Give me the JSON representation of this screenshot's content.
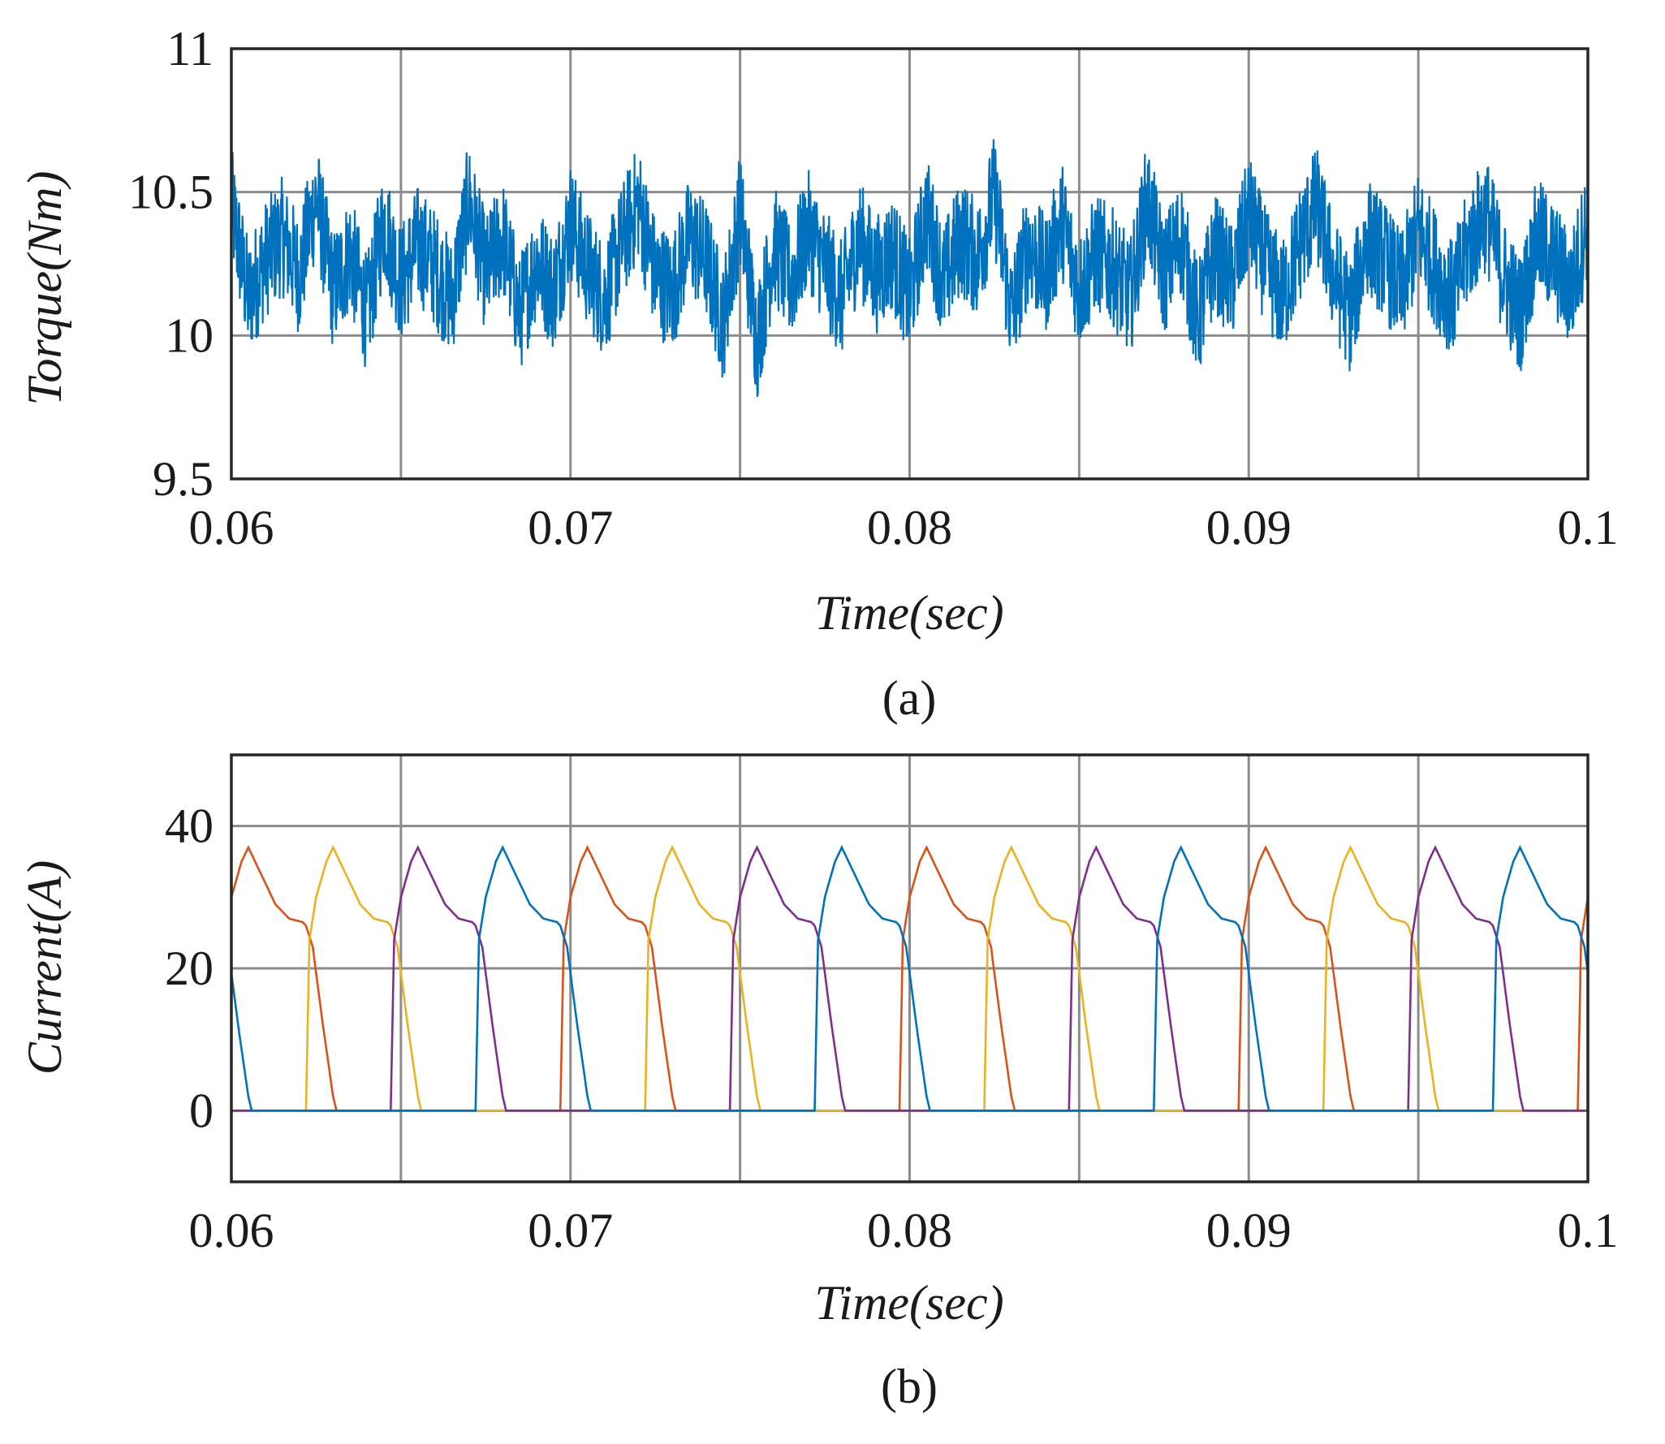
{
  "chart_data": [
    {
      "type": "line",
      "caption": "(a)",
      "xlabel": "Time(sec)",
      "ylabel": "Torque(Nm)",
      "xlim": [
        0.06,
        0.1
      ],
      "ylim": [
        9.5,
        11
      ],
      "xticks": [
        "0.06",
        "0.07",
        "0.08",
        "0.09",
        "0.1"
      ],
      "yticks": [
        "9.5",
        "10",
        "10.5",
        "11"
      ],
      "grid": true,
      "x": [
        0.06,
        0.0605,
        0.061,
        0.0615,
        0.062,
        0.0625,
        0.063,
        0.0635,
        0.064,
        0.0645,
        0.065,
        0.0655,
        0.066,
        0.0665,
        0.067,
        0.0675,
        0.068,
        0.0685,
        0.069,
        0.0695,
        0.07,
        0.0705,
        0.071,
        0.0715,
        0.072,
        0.0725,
        0.073,
        0.0735,
        0.074,
        0.0745,
        0.075,
        0.0755,
        0.076,
        0.0765,
        0.077,
        0.0775,
        0.078,
        0.0785,
        0.079,
        0.0795,
        0.08,
        0.0805,
        0.081,
        0.0815,
        0.082,
        0.0825,
        0.083,
        0.0835,
        0.084,
        0.0845,
        0.085,
        0.0855,
        0.086,
        0.0865,
        0.087,
        0.0875,
        0.088,
        0.0885,
        0.089,
        0.0895,
        0.09,
        0.0905,
        0.091,
        0.0915,
        0.092,
        0.0925,
        0.093,
        0.0935,
        0.094,
        0.0945,
        0.095,
        0.0955,
        0.096,
        0.0965,
        0.097,
        0.0975,
        0.098,
        0.0985,
        0.099,
        0.0995,
        0.1
      ],
      "series": [
        {
          "color": "#0072BD",
          "values": [
            10.65,
            10.05,
            10.3,
            10.45,
            10.2,
            10.7,
            10.1,
            10.35,
            9.95,
            10.55,
            10.15,
            10.4,
            10.25,
            10.05,
            10.68,
            10.2,
            10.45,
            9.95,
            10.3,
            10.1,
            10.55,
            10.25,
            10.05,
            10.4,
            10.67,
            10.2,
            10.1,
            10.45,
            10.3,
            9.9,
            10.62,
            9.78,
            10.4,
            10.15,
            10.5,
            10.25,
            10.05,
            10.45,
            10.2,
            10.35,
            10.05,
            10.6,
            10.15,
            10.45,
            10.3,
            10.72,
            9.95,
            10.4,
            10.2,
            10.55,
            10.1,
            10.35,
            10.25,
            10.05,
            10.68,
            10.2,
            10.45,
            9.9,
            10.35,
            10.15,
            10.6,
            10.25,
            10.05,
            10.4,
            10.65,
            10.2,
            9.95,
            10.45,
            10.3,
            10.1,
            10.5,
            10.25,
            10.05,
            10.4,
            10.6,
            10.2,
            9.95,
            10.45,
            10.3,
            10.1,
            10.55
          ]
        }
      ]
    },
    {
      "type": "line",
      "caption": "(b)",
      "xlabel": "Time(sec)",
      "ylabel": "Current(A)",
      "xlim": [
        0.06,
        0.1
      ],
      "ylim": [
        -10,
        50
      ],
      "xticks": [
        "0.06",
        "0.07",
        "0.08",
        "0.09",
        "0.1"
      ],
      "yticks": [
        "0",
        "20",
        "40"
      ],
      "grid": true,
      "period": 0.01,
      "series": [
        {
          "color": "#D95319",
          "pulse_starts": [
            0.0597,
            0.0697,
            0.0797,
            0.0897,
            0.0997
          ]
        },
        {
          "color": "#EDB120",
          "pulse_starts": [
            0.0622,
            0.0722,
            0.0822,
            0.0922
          ]
        },
        {
          "color": "#7E2F8E",
          "pulse_starts": [
            0.0647,
            0.0747,
            0.0847,
            0.0947
          ]
        },
        {
          "color": "#0072BD",
          "pulse_starts": [
            0.0572,
            0.0672,
            0.0772,
            0.0872,
            0.0972
          ]
        }
      ],
      "pulse_shape": {
        "t": [
          0.0,
          0.0001,
          0.0003,
          0.0006,
          0.0008,
          0.0012,
          0.0016,
          0.002,
          0.0024,
          0.0025,
          0.0027,
          0.003,
          0.0033,
          0.0034
        ],
        "i": [
          0,
          24,
          30,
          35,
          37,
          33,
          29,
          27,
          26.5,
          26,
          23,
          12,
          2,
          0
        ]
      }
    }
  ]
}
